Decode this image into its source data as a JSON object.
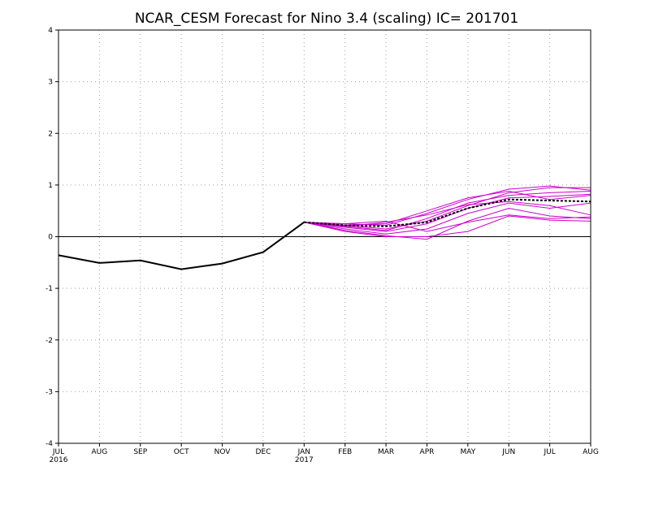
{
  "chart_data": {
    "type": "line",
    "title": "NCAR_CESM Forecast for Nino 3.4 (scaling)  IC= 201701",
    "xlabel": "",
    "ylabel": "",
    "x_categories": [
      "JUL",
      "AUG",
      "SEP",
      "OCT",
      "NOV",
      "DEC",
      "JAN",
      "FEB",
      "MAR",
      "APR",
      "MAY",
      "JUN",
      "JUL",
      "AUG"
    ],
    "x_year_labels": [
      {
        "index": 0,
        "label": "2016"
      },
      {
        "index": 6,
        "label": "2017"
      }
    ],
    "y_ticks": [
      -4,
      -3,
      -2,
      -1,
      0,
      1,
      2,
      3,
      4
    ],
    "ylim": [
      -4,
      4
    ],
    "grid": true,
    "zero_line": true,
    "colors": {
      "observed": "#000000",
      "members": "#cc00cc",
      "ensemble_mean": "#000000",
      "grid": "#a0a0a0"
    },
    "observed": {
      "x_index": [
        0,
        1,
        2,
        3,
        4,
        5,
        6
      ],
      "values": [
        -0.36,
        -0.51,
        -0.46,
        -0.63,
        -0.52,
        -0.3,
        0.28
      ]
    },
    "members": [
      {
        "x_index": [
          6,
          7,
          8,
          9,
          10,
          11,
          12,
          13
        ],
        "values": [
          0.28,
          0.22,
          0.15,
          0.3,
          0.6,
          0.85,
          0.95,
          0.95
        ]
      },
      {
        "x_index": [
          6,
          7,
          8,
          9,
          10,
          11,
          12,
          13
        ],
        "values": [
          0.28,
          0.25,
          0.22,
          0.45,
          0.72,
          0.92,
          0.98,
          0.9
        ]
      },
      {
        "x_index": [
          6,
          7,
          8,
          9,
          10,
          11,
          12,
          13
        ],
        "values": [
          0.28,
          0.2,
          0.12,
          0.35,
          0.65,
          0.8,
          0.85,
          0.88
        ]
      },
      {
        "x_index": [
          6,
          7,
          8,
          9,
          10,
          11,
          12,
          13
        ],
        "values": [
          0.28,
          0.18,
          0.1,
          0.25,
          0.55,
          0.75,
          0.78,
          0.82
        ]
      },
      {
        "x_index": [
          6,
          7,
          8,
          9,
          10,
          11,
          12,
          13
        ],
        "values": [
          0.28,
          0.22,
          0.25,
          0.5,
          0.75,
          0.88,
          0.72,
          0.8
        ]
      },
      {
        "x_index": [
          6,
          7,
          8,
          9,
          10,
          11,
          12,
          13
        ],
        "values": [
          0.28,
          0.15,
          0.05,
          0.15,
          0.45,
          0.65,
          0.55,
          0.65
        ]
      },
      {
        "x_index": [
          6,
          7,
          8,
          9,
          10,
          11,
          12,
          13
        ],
        "values": [
          0.28,
          0.12,
          0.02,
          -0.05,
          0.3,
          0.55,
          0.4,
          0.35
        ]
      },
      {
        "x_index": [
          6,
          7,
          8,
          9,
          10,
          11,
          12,
          13
        ],
        "values": [
          0.28,
          0.2,
          0.28,
          0.42,
          0.62,
          0.68,
          0.6,
          0.42
        ]
      },
      {
        "x_index": [
          6,
          7,
          8,
          9,
          10,
          11,
          12,
          13
        ],
        "values": [
          0.28,
          0.25,
          0.3,
          0.1,
          0.28,
          0.42,
          0.35,
          0.38
        ]
      },
      {
        "x_index": [
          6,
          7,
          8,
          9,
          10,
          11,
          12,
          13
        ],
        "values": [
          0.28,
          0.1,
          0.0,
          0.0,
          0.1,
          0.4,
          0.32,
          0.3
        ]
      }
    ],
    "ensemble_mean": {
      "x_index": [
        6,
        7,
        8,
        9,
        10,
        11,
        12,
        13
      ],
      "values": [
        0.28,
        0.22,
        0.2,
        0.28,
        0.55,
        0.72,
        0.7,
        0.68
      ]
    }
  }
}
